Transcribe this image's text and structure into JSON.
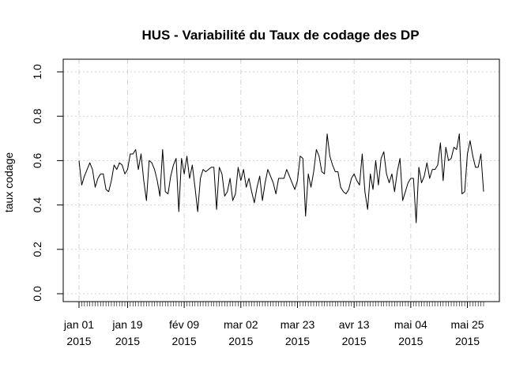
{
  "chart_data": {
    "type": "line",
    "title": "HUS  - Variabilité du Taux de codage des DP",
    "xlabel": "",
    "ylabel": "taux codage",
    "ylim": [
      0,
      1
    ],
    "yticks": [
      "0.0",
      "0.2",
      "0.4",
      "0.6",
      "0.8",
      "1.0"
    ],
    "x_start": "2015-01-01",
    "xlim": [
      "2015-01-01",
      "2015-05-31"
    ],
    "xticks": [
      {
        "date": "2015-01-01",
        "line1": "jan 01",
        "line2": "2015"
      },
      {
        "date": "2015-01-19",
        "line1": "jan 19",
        "line2": "2015"
      },
      {
        "date": "2015-02-09",
        "line1": "fév 09",
        "line2": "2015"
      },
      {
        "date": "2015-03-02",
        "line1": "mar 02",
        "line2": "2015"
      },
      {
        "date": "2015-03-23",
        "line1": "mar 23",
        "line2": "2015"
      },
      {
        "date": "2015-04-13",
        "line1": "avr 13",
        "line2": "2015"
      },
      {
        "date": "2015-05-04",
        "line1": "mai 04",
        "line2": "2015"
      },
      {
        "date": "2015-05-25",
        "line1": "mai 25",
        "line2": "2015"
      }
    ],
    "grid": true,
    "line_color": "#000000",
    "grid_color": "#d3d3d3",
    "series": [
      {
        "values": [
          0.6,
          0.49,
          0.53,
          0.56,
          0.59,
          0.56,
          0.48,
          0.52,
          0.54,
          0.54,
          0.47,
          0.46,
          0.51,
          0.58,
          0.56,
          0.59,
          0.58,
          0.54,
          0.56,
          0.63,
          0.63,
          0.65,
          0.56,
          0.63,
          0.51,
          0.42,
          0.6,
          0.59,
          0.56,
          0.51,
          0.44,
          0.65,
          0.46,
          0.45,
          0.53,
          0.58,
          0.61,
          0.37,
          0.61,
          0.54,
          0.62,
          0.52,
          0.58,
          0.48,
          0.37,
          0.52,
          0.56,
          0.55,
          0.56,
          0.57,
          0.57,
          0.38,
          0.57,
          0.54,
          0.44,
          0.46,
          0.52,
          0.42,
          0.45,
          0.57,
          0.51,
          0.56,
          0.48,
          0.52,
          0.46,
          0.41,
          0.48,
          0.53,
          0.42,
          0.5,
          0.56,
          0.53,
          0.5,
          0.45,
          0.52,
          0.52,
          0.52,
          0.56,
          0.53,
          0.5,
          0.47,
          0.51,
          0.62,
          0.61,
          0.35,
          0.54,
          0.48,
          0.55,
          0.65,
          0.62,
          0.55,
          0.54,
          0.72,
          0.62,
          0.58,
          0.55,
          0.55,
          0.48,
          0.46,
          0.45,
          0.47,
          0.52,
          0.54,
          0.51,
          0.49,
          0.63,
          0.46,
          0.38,
          0.54,
          0.47,
          0.6,
          0.49,
          0.61,
          0.64,
          0.54,
          0.5,
          0.54,
          0.46,
          0.55,
          0.61,
          0.42,
          0.46,
          0.5,
          0.52,
          0.52,
          0.32,
          0.57,
          0.5,
          0.53,
          0.59,
          0.52,
          0.56,
          0.56,
          0.58,
          0.68,
          0.51,
          0.66,
          0.6,
          0.61,
          0.66,
          0.65,
          0.72,
          0.45,
          0.46,
          0.63,
          0.69,
          0.62,
          0.57,
          0.57,
          0.63,
          0.46
        ]
      }
    ]
  }
}
